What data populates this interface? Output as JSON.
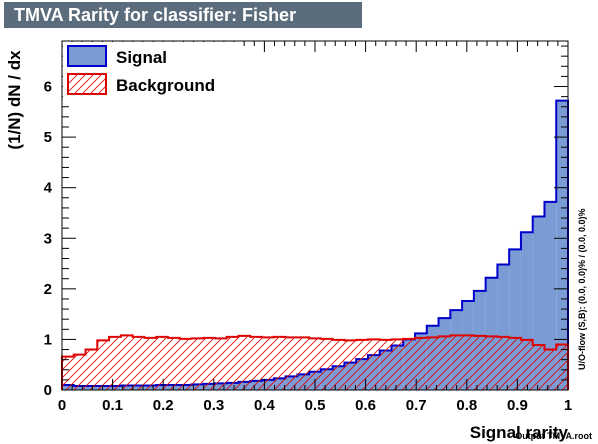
{
  "chart_data": {
    "type": "bar",
    "title": "TMVA Rarity for classifier: Fisher",
    "xlabel": "Signal rarity",
    "ylabel": "(1/N) dN / dx",
    "xlim": [
      0,
      1
    ],
    "ylim": [
      0,
      6.9
    ],
    "xticks": [
      "0",
      "0.1",
      "0.2",
      "0.3",
      "0.4",
      "0.5",
      "0.6",
      "0.7",
      "0.8",
      "0.9",
      "1"
    ],
    "yticks": [
      "0",
      "1",
      "2",
      "3",
      "4",
      "5",
      "6"
    ],
    "legend_position": "top-left",
    "series": [
      {
        "name": "Signal",
        "style": "filled-histogram",
        "fill": "#7b9bd4",
        "line": "#0000cc",
        "values": [
          0.1,
          0.08,
          0.08,
          0.08,
          0.08,
          0.09,
          0.09,
          0.09,
          0.1,
          0.1,
          0.1,
          0.11,
          0.12,
          0.13,
          0.14,
          0.16,
          0.18,
          0.2,
          0.23,
          0.27,
          0.31,
          0.36,
          0.41,
          0.47,
          0.54,
          0.61,
          0.69,
          0.78,
          0.88,
          1.0,
          1.12,
          1.27,
          1.42,
          1.58,
          1.76,
          1.96,
          2.22,
          2.48,
          2.78,
          3.12,
          3.43,
          3.72,
          5.72
        ]
      },
      {
        "name": "Background",
        "style": "hatched-histogram",
        "line": "#e00000",
        "values": [
          0.66,
          0.7,
          0.8,
          0.98,
          1.05,
          1.08,
          1.05,
          1.03,
          1.05,
          1.03,
          1.01,
          1.02,
          1.03,
          1.02,
          1.05,
          1.07,
          1.05,
          1.04,
          1.05,
          1.04,
          1.04,
          1.02,
          1.01,
          0.99,
          0.98,
          0.99,
          1.0,
          0.99,
          1.0,
          1.01,
          1.03,
          1.04,
          1.06,
          1.08,
          1.08,
          1.07,
          1.06,
          1.05,
          1.03,
          0.99,
          0.89,
          0.8,
          0.9
        ]
      }
    ],
    "side_label": "U/O-flow (S,B): (0.0, 0.0)% / (0.0, 0.0)%",
    "footer_label": "Output TMVA.root"
  }
}
